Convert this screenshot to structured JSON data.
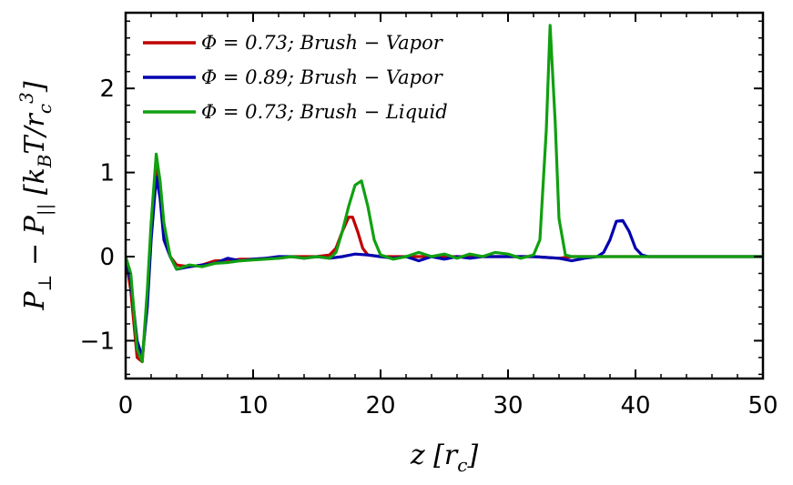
{
  "chart_data": {
    "type": "line",
    "xlabel": "z [r_c]",
    "ylabel": "P_⊥ − P_|| [k_B T/r_c^3]",
    "xlim": [
      0,
      50
    ],
    "ylim": [
      -1.45,
      2.9
    ],
    "x_ticks": [
      0,
      10,
      20,
      30,
      40,
      50
    ],
    "x_tick_labels": [
      "0",
      "10",
      "20",
      "30",
      "40",
      "50"
    ],
    "y_ticks": [
      -1,
      0,
      1,
      2
    ],
    "y_tick_labels": [
      "−1",
      "0",
      "1",
      "2"
    ],
    "grid": false,
    "legend_position": "upper-left",
    "series": [
      {
        "name": "Φ = 0.73; Brush − Vapor",
        "color": "#c00000",
        "points": [
          [
            0,
            0
          ],
          [
            0.4,
            -0.4
          ],
          [
            0.9,
            -1.2
          ],
          [
            1.3,
            -1.25
          ],
          [
            1.7,
            -0.5
          ],
          [
            2.0,
            0.3
          ],
          [
            2.4,
            1.1
          ],
          [
            2.7,
            0.8
          ],
          [
            3.0,
            0.3
          ],
          [
            3.5,
            0
          ],
          [
            4.0,
            -0.1
          ],
          [
            5,
            -0.12
          ],
          [
            6,
            -0.1
          ],
          [
            7,
            -0.05
          ],
          [
            8,
            -0.05
          ],
          [
            9,
            -0.03
          ],
          [
            10,
            -0.03
          ],
          [
            11,
            -0.02
          ],
          [
            12,
            -0.02
          ],
          [
            13,
            0
          ],
          [
            14,
            0
          ],
          [
            15,
            0
          ],
          [
            16,
            0.02
          ],
          [
            16.5,
            0.1
          ],
          [
            17,
            0.3
          ],
          [
            17.5,
            0.47
          ],
          [
            17.8,
            0.47
          ],
          [
            18.2,
            0.3
          ],
          [
            18.6,
            0.1
          ],
          [
            19,
            0.02
          ],
          [
            20,
            0
          ],
          [
            22,
            0
          ],
          [
            24,
            0
          ],
          [
            26,
            0
          ],
          [
            28,
            0
          ],
          [
            30,
            0
          ],
          [
            32,
            0
          ],
          [
            34,
            -0.02
          ],
          [
            35,
            0
          ],
          [
            40,
            0
          ],
          [
            45,
            0
          ],
          [
            50,
            0
          ]
        ]
      },
      {
        "name": "Φ = 0.89; Brush − Vapor",
        "color": "#0000b0",
        "points": [
          [
            0,
            0
          ],
          [
            0.4,
            -0.3
          ],
          [
            0.9,
            -1.0
          ],
          [
            1.3,
            -1.2
          ],
          [
            1.7,
            -0.6
          ],
          [
            2.0,
            0.2
          ],
          [
            2.4,
            0.95
          ],
          [
            2.7,
            0.7
          ],
          [
            3.0,
            0.2
          ],
          [
            3.5,
            0
          ],
          [
            4.0,
            -0.15
          ],
          [
            5,
            -0.12
          ],
          [
            6,
            -0.1
          ],
          [
            7,
            -0.08
          ],
          [
            8,
            -0.02
          ],
          [
            9,
            -0.05
          ],
          [
            10,
            -0.03
          ],
          [
            11,
            -0.02
          ],
          [
            12,
            0
          ],
          [
            13,
            0
          ],
          [
            14,
            -0.02
          ],
          [
            15,
            0
          ],
          [
            16,
            -0.02
          ],
          [
            17,
            0
          ],
          [
            18,
            0.03
          ],
          [
            19,
            0.02
          ],
          [
            20,
            0
          ],
          [
            21,
            -0.02
          ],
          [
            22,
            0
          ],
          [
            23,
            -0.05
          ],
          [
            24,
            0
          ],
          [
            25,
            -0.03
          ],
          [
            26,
            0
          ],
          [
            27,
            -0.02
          ],
          [
            28,
            0
          ],
          [
            30,
            0
          ],
          [
            32,
            0
          ],
          [
            34,
            -0.02
          ],
          [
            35,
            -0.05
          ],
          [
            36,
            -0.02
          ],
          [
            37,
            0
          ],
          [
            37.5,
            0.05
          ],
          [
            38,
            0.2
          ],
          [
            38.5,
            0.42
          ],
          [
            39,
            0.43
          ],
          [
            39.5,
            0.3
          ],
          [
            40,
            0.1
          ],
          [
            40.5,
            0.02
          ],
          [
            41,
            0
          ],
          [
            45,
            0
          ],
          [
            50,
            0
          ]
        ]
      },
      {
        "name": "Φ = 0.73; Brush − Liquid",
        "color": "#10a010",
        "points": [
          [
            0,
            0
          ],
          [
            0.4,
            -0.2
          ],
          [
            0.9,
            -1.1
          ],
          [
            1.3,
            -1.25
          ],
          [
            1.7,
            -0.4
          ],
          [
            2.0,
            0.4
          ],
          [
            2.4,
            1.22
          ],
          [
            2.7,
            0.9
          ],
          [
            3.0,
            0.4
          ],
          [
            3.5,
            0
          ],
          [
            4.0,
            -0.15
          ],
          [
            5,
            -0.1
          ],
          [
            6,
            -0.12
          ],
          [
            7,
            -0.08
          ],
          [
            8,
            -0.07
          ],
          [
            9,
            -0.05
          ],
          [
            10,
            -0.04
          ],
          [
            11,
            -0.03
          ],
          [
            12,
            -0.02
          ],
          [
            13,
            0
          ],
          [
            14,
            -0.02
          ],
          [
            15,
            0
          ],
          [
            16,
            -0.02
          ],
          [
            16.5,
            0.05
          ],
          [
            17,
            0.3
          ],
          [
            17.5,
            0.6
          ],
          [
            18,
            0.85
          ],
          [
            18.5,
            0.9
          ],
          [
            19,
            0.6
          ],
          [
            19.5,
            0.2
          ],
          [
            20,
            0.02
          ],
          [
            21,
            -0.03
          ],
          [
            22,
            0
          ],
          [
            23,
            0.05
          ],
          [
            24,
            0
          ],
          [
            25,
            0.03
          ],
          [
            26,
            -0.02
          ],
          [
            27,
            0.03
          ],
          [
            28,
            0
          ],
          [
            29,
            0.05
          ],
          [
            30,
            0.03
          ],
          [
            31,
            -0.02
          ],
          [
            32,
            0.02
          ],
          [
            32.5,
            0.2
          ],
          [
            33,
            1.5
          ],
          [
            33.3,
            2.75
          ],
          [
            33.7,
            1.6
          ],
          [
            34.0,
            0.45
          ],
          [
            34.5,
            0.02
          ],
          [
            35,
            0
          ],
          [
            40,
            0
          ],
          [
            45,
            0
          ],
          [
            50,
            0
          ]
        ]
      }
    ]
  }
}
